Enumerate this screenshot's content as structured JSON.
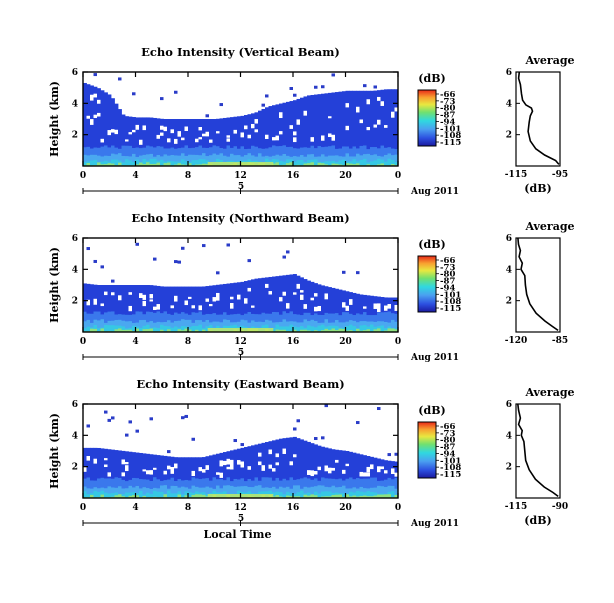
{
  "chart_data": [
    {
      "type": "heatmap",
      "title": "Echo Intensity (Vertical Beam)",
      "ylabel": "Height (km)",
      "xlabel": "",
      "x_ticks": [
        "0",
        "4",
        "8",
        "12",
        "16",
        "20",
        "0"
      ],
      "y_ticks": [
        "2",
        "4",
        "6"
      ],
      "date_label": "Aug 2011",
      "day_labels": [
        "5"
      ],
      "xlim": [
        0,
        24
      ],
      "ylim": [
        0,
        6
      ],
      "cloud_top_km": [
        5.3,
        5.0,
        4.5,
        3.2,
        3.1,
        3.1,
        3.0,
        3.0,
        3.0,
        3.0,
        3.0,
        3.1,
        3.2,
        3.4,
        3.8,
        4.0,
        4.2,
        4.5,
        4.6,
        4.7,
        4.8,
        4.8,
        4.8,
        4.9,
        4.9
      ],
      "colorbar": {
        "label": "(dB)",
        "ticks": [
          "-66",
          "-73",
          "-80",
          "-87",
          "-94",
          "-101",
          "-108",
          "-115"
        ],
        "range": [
          -115,
          -66
        ]
      },
      "profile": {
        "title": "Average",
        "xlabel": "(dB)",
        "x_ticks": [
          "-115",
          "-95"
        ],
        "y_ticks": [
          "2",
          "4",
          "6"
        ],
        "xlim": [
          -115,
          -95
        ],
        "ylim": [
          0,
          6
        ],
        "points": [
          [
            -113.5,
            6.0
          ],
          [
            -113.8,
            5.6
          ],
          [
            -113.0,
            5.2
          ],
          [
            -112.5,
            4.6
          ],
          [
            -112.0,
            4.2
          ],
          [
            -110.5,
            3.9
          ],
          [
            -108.0,
            3.7
          ],
          [
            -107.5,
            3.5
          ],
          [
            -108.5,
            3.2
          ],
          [
            -109.0,
            2.8
          ],
          [
            -109.5,
            2.2
          ],
          [
            -108.5,
            1.6
          ],
          [
            -106.0,
            1.1
          ],
          [
            -102.0,
            0.7
          ],
          [
            -97.0,
            0.35
          ],
          [
            -95.5,
            0.1
          ]
        ]
      }
    },
    {
      "type": "heatmap",
      "title": "Echo Intensity (Northward Beam)",
      "ylabel": "Height (km)",
      "xlabel": "",
      "x_ticks": [
        "0",
        "4",
        "8",
        "12",
        "16",
        "20",
        "0"
      ],
      "y_ticks": [
        "2",
        "4",
        "6"
      ],
      "date_label": "Aug 2011",
      "day_labels": [
        "5"
      ],
      "xlim": [
        0,
        24
      ],
      "ylim": [
        0,
        6
      ],
      "cloud_top_km": [
        3.1,
        3.0,
        3.0,
        3.0,
        3.0,
        3.0,
        2.9,
        2.9,
        2.9,
        2.9,
        3.0,
        3.1,
        3.2,
        3.4,
        3.5,
        3.6,
        3.7,
        3.3,
        3.0,
        2.8,
        2.6,
        2.4,
        2.3,
        2.2,
        2.2
      ],
      "colorbar": {
        "label": "(dB)",
        "ticks": [
          "-66",
          "-73",
          "-80",
          "-87",
          "-94",
          "-101",
          "-108",
          "-115"
        ],
        "range": [
          -115,
          -66
        ]
      },
      "profile": {
        "title": "Average",
        "xlabel": "",
        "x_ticks": [
          "-120",
          "-85"
        ],
        "y_ticks": [
          "2",
          "4",
          "6"
        ],
        "xlim": [
          -120,
          -85
        ],
        "ylim": [
          0,
          6
        ],
        "points": [
          [
            -118.5,
            6.0
          ],
          [
            -118.0,
            5.6
          ],
          [
            -116.5,
            5.2
          ],
          [
            -117.5,
            4.8
          ],
          [
            -115.0,
            4.4
          ],
          [
            -116.0,
            4.0
          ],
          [
            -113.0,
            3.6
          ],
          [
            -112.5,
            3.0
          ],
          [
            -111.5,
            2.4
          ],
          [
            -109.0,
            1.8
          ],
          [
            -104.0,
            1.2
          ],
          [
            -97.0,
            0.7
          ],
          [
            -91.0,
            0.35
          ],
          [
            -86.5,
            0.1
          ]
        ]
      }
    },
    {
      "type": "heatmap",
      "title": "Echo Intensity (Eastward Beam)",
      "ylabel": "Height (km)",
      "xlabel": "Local Time",
      "x_ticks": [
        "0",
        "4",
        "8",
        "12",
        "16",
        "20",
        "0"
      ],
      "y_ticks": [
        "2",
        "4",
        "6"
      ],
      "date_label": "Aug 2011",
      "day_labels": [
        "5"
      ],
      "xlim": [
        0,
        24
      ],
      "ylim": [
        0,
        6
      ],
      "cloud_top_km": [
        3.2,
        3.2,
        3.1,
        3.0,
        2.9,
        2.8,
        2.7,
        2.6,
        2.6,
        2.6,
        2.8,
        3.0,
        3.2,
        3.4,
        3.6,
        3.8,
        3.9,
        3.6,
        3.3,
        3.1,
        3.0,
        2.8,
        2.6,
        2.4,
        2.3
      ],
      "colorbar": {
        "label": "(dB)",
        "ticks": [
          "-66",
          "-73",
          "-80",
          "-87",
          "-94",
          "-101",
          "-108",
          "-115"
        ],
        "range": [
          -115,
          -66
        ]
      },
      "profile": {
        "title": "Average",
        "xlabel": "(dB)",
        "x_ticks": [
          "-115",
          "-90"
        ],
        "y_ticks": [
          "2",
          "4",
          "6"
        ],
        "xlim": [
          -115,
          -90
        ],
        "ylim": [
          0,
          6
        ],
        "points": [
          [
            -114.0,
            6.0
          ],
          [
            -113.5,
            5.6
          ],
          [
            -112.5,
            5.1
          ],
          [
            -113.5,
            4.7
          ],
          [
            -111.5,
            4.3
          ],
          [
            -112.0,
            4.0
          ],
          [
            -110.5,
            3.6
          ],
          [
            -110.0,
            3.0
          ],
          [
            -109.5,
            2.4
          ],
          [
            -107.5,
            1.8
          ],
          [
            -104.0,
            1.2
          ],
          [
            -99.0,
            0.7
          ],
          [
            -94.0,
            0.35
          ],
          [
            -91.0,
            0.1
          ]
        ]
      }
    }
  ]
}
